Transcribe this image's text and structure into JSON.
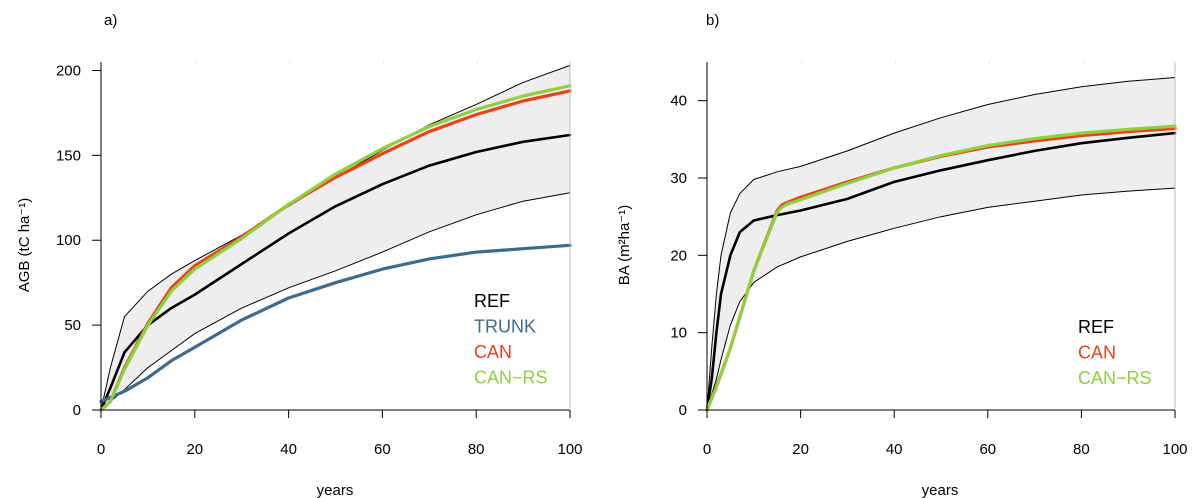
{
  "chart_data": [
    {
      "panel_label": "a)",
      "type": "line",
      "xlabel": "years",
      "ylabel": "AGB (tC ha⁻¹)",
      "xlim": [
        0,
        100
      ],
      "ylim": [
        0,
        205
      ],
      "xticks": [
        0,
        20,
        40,
        60,
        80,
        100
      ],
      "yticks": [
        0,
        50,
        100,
        150,
        200
      ],
      "legend_position": "bottom-right",
      "band": {
        "x": [
          0,
          2,
          5,
          10,
          15,
          20,
          30,
          40,
          50,
          60,
          70,
          80,
          90,
          100
        ],
        "upper": [
          0,
          25,
          55,
          70,
          80,
          88,
          103,
          120,
          137,
          153,
          168,
          180,
          193,
          203
        ],
        "lower": [
          0,
          5,
          12,
          25,
          35,
          45,
          60,
          72,
          82,
          93,
          105,
          115,
          123,
          128
        ]
      },
      "series": [
        {
          "name": "REF",
          "color": "#000000",
          "x": [
            0,
            2,
            5,
            10,
            15,
            20,
            30,
            40,
            50,
            60,
            70,
            80,
            90,
            100
          ],
          "y": [
            0,
            13,
            34,
            50,
            60,
            68,
            86,
            104,
            120,
            133,
            144,
            152,
            158,
            162
          ]
        },
        {
          "name": "TRUNK",
          "color": "#3d6a8d",
          "x": [
            0,
            5,
            10,
            15,
            20,
            30,
            40,
            50,
            60,
            70,
            80,
            90,
            100
          ],
          "y": [
            5,
            11,
            19,
            29,
            37,
            53,
            66,
            75,
            83,
            89,
            93,
            95,
            97
          ]
        },
        {
          "name": "CAN",
          "color": "#e8431a",
          "x": [
            0,
            2,
            5,
            10,
            15,
            20,
            30,
            40,
            50,
            60,
            70,
            80,
            90,
            100
          ],
          "y": [
            0,
            5,
            25,
            51,
            72,
            85,
            102,
            121,
            137,
            151,
            164,
            174,
            182,
            188
          ]
        },
        {
          "name": "CAN−RS",
          "color": "#8fd03f",
          "x": [
            0,
            2,
            5,
            10,
            15,
            20,
            30,
            40,
            50,
            60,
            70,
            80,
            90,
            100
          ],
          "y": [
            0,
            5,
            24,
            50,
            70,
            83,
            101,
            121,
            139,
            154,
            167,
            177,
            185,
            191
          ]
        }
      ]
    },
    {
      "panel_label": "b)",
      "type": "line",
      "xlabel": "years",
      "ylabel": "BA (m²ha⁻¹)",
      "xlim": [
        0,
        100
      ],
      "ylim": [
        0,
        45
      ],
      "xticks": [
        0,
        20,
        40,
        60,
        80,
        100
      ],
      "yticks": [
        0,
        10,
        20,
        30,
        40
      ],
      "legend_position": "bottom-right",
      "band": {
        "x": [
          0,
          1,
          2,
          3,
          5,
          7,
          10,
          15,
          20,
          30,
          40,
          50,
          60,
          70,
          80,
          90,
          100
        ],
        "upper": [
          0,
          8,
          15,
          20,
          25.5,
          28,
          29.8,
          30.8,
          31.5,
          33.5,
          35.8,
          37.8,
          39.5,
          40.8,
          41.8,
          42.5,
          43
        ],
        "lower": [
          0,
          2,
          4,
          6.5,
          11,
          14,
          16.5,
          18.5,
          19.8,
          21.8,
          23.5,
          25,
          26.2,
          27,
          27.8,
          28.3,
          28.7
        ]
      },
      "series": [
        {
          "name": "REF",
          "color": "#000000",
          "x": [
            0,
            1,
            2,
            3,
            5,
            7,
            10,
            15,
            20,
            30,
            40,
            50,
            60,
            70,
            80,
            90,
            100
          ],
          "y": [
            0,
            4,
            10,
            15,
            20,
            23,
            24.5,
            25.2,
            25.8,
            27.3,
            29.5,
            31,
            32.3,
            33.5,
            34.5,
            35.2,
            35.8
          ]
        },
        {
          "name": "CAN",
          "color": "#e8431a",
          "x": [
            0,
            2,
            5,
            10,
            15,
            16,
            17,
            20,
            30,
            40,
            50,
            60,
            70,
            80,
            90,
            100
          ],
          "y": [
            0,
            3,
            8,
            18,
            25.8,
            26.5,
            26.8,
            27.5,
            29.5,
            31.3,
            32.8,
            34,
            34.8,
            35.5,
            36,
            36.4
          ]
        },
        {
          "name": "CAN−RS",
          "color": "#8fd03f",
          "x": [
            0,
            2,
            5,
            10,
            15,
            16,
            17,
            20,
            30,
            40,
            50,
            60,
            70,
            80,
            90,
            100
          ],
          "y": [
            0,
            3,
            8,
            18,
            25.6,
            26.2,
            26.6,
            27.2,
            29.3,
            31.3,
            32.9,
            34.2,
            35.1,
            35.8,
            36.3,
            36.7
          ]
        }
      ]
    }
  ]
}
